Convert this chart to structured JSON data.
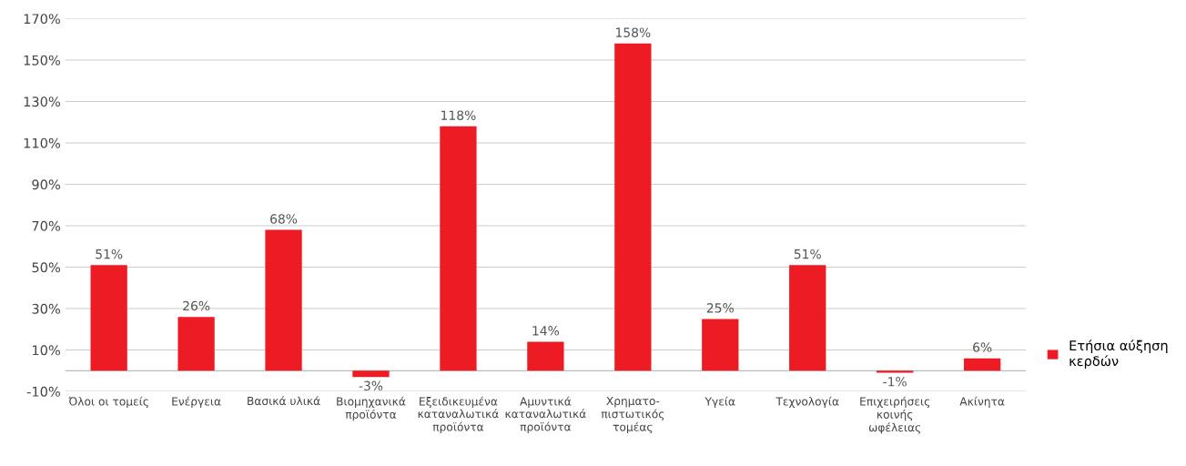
{
  "chart_data": {
    "type": "bar",
    "categories": [
      "Όλοι οι τομείς",
      "Ενέργεια",
      "Βασικά υλικά",
      "Βιομηχανικά\nπροϊόντα",
      "Εξειδικευμένα\nκαταναλωτικά\nπροϊόντα",
      "Αμυντικά\nκαταναλωτικά\nπροϊόντα",
      "Χρηματο-\nπιστωτικός\nτομέας",
      "Υγεία",
      "Τεχνολογία",
      "Επιχειρήσεις\nκοινής\nωφέλειας",
      "Ακίνητα"
    ],
    "series": [
      {
        "name": "Ετήσια αύξηση\nκερδών",
        "color": "#ed1c24",
        "values": [
          51,
          26,
          68,
          -3,
          118,
          14,
          158,
          25,
          51,
          -1,
          6
        ],
        "value_labels": [
          "51%",
          "26%",
          "68%",
          "-3%",
          "118%",
          "14%",
          "158%",
          "25%",
          "51%",
          "-1%",
          "6%"
        ]
      }
    ],
    "ylim": [
      -10,
      170
    ],
    "yticks": [
      {
        "value": -10,
        "label": "-10%"
      },
      {
        "value": 10,
        "label": "10%"
      },
      {
        "value": 30,
        "label": "30%"
      },
      {
        "value": 50,
        "label": "50%"
      },
      {
        "value": 70,
        "label": "70%"
      },
      {
        "value": 90,
        "label": "90%"
      },
      {
        "value": 110,
        "label": "110%"
      },
      {
        "value": 130,
        "label": "130%"
      },
      {
        "value": 150,
        "label": "150%"
      },
      {
        "value": 170,
        "label": "170%"
      }
    ],
    "grid": "y",
    "legend": "right"
  }
}
